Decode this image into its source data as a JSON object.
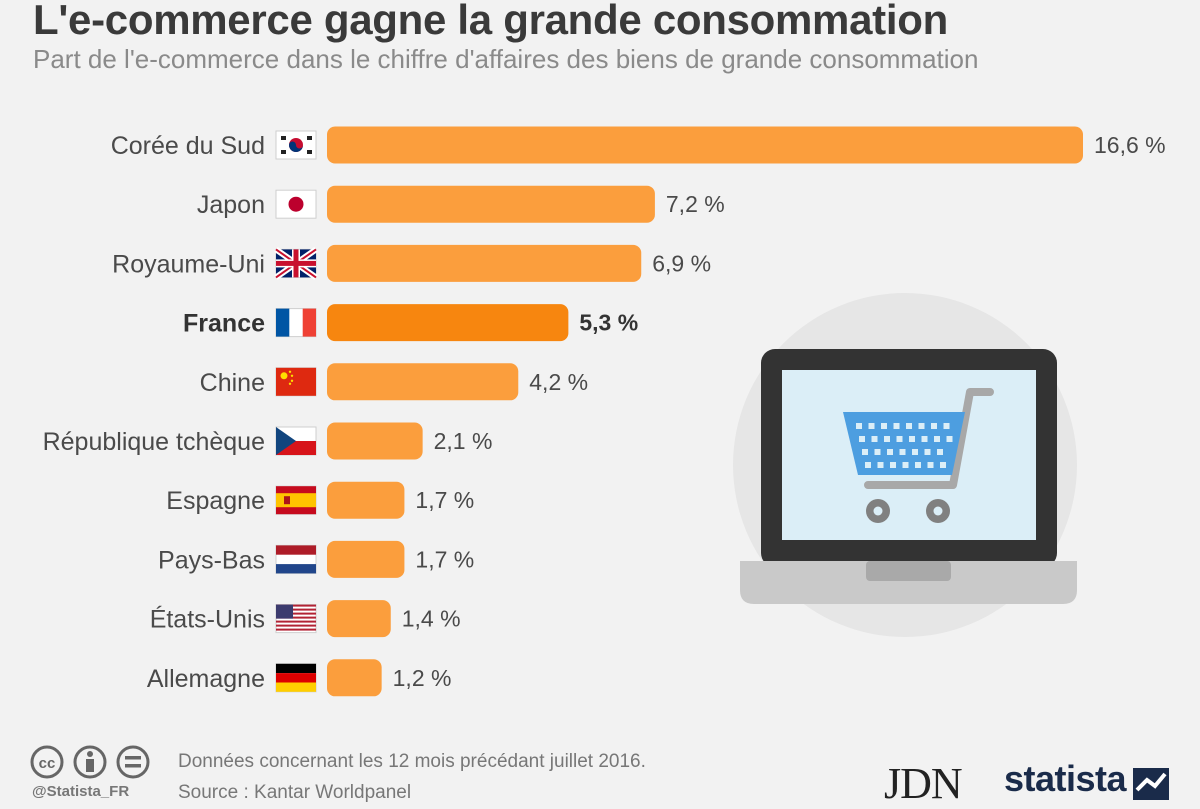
{
  "title": "L'e-commerce gagne la grande consommation",
  "subtitle": "Part de l'e-commerce dans le chiffre d'affaires des biens de grande consommation",
  "chart_data": {
    "type": "bar",
    "orientation": "horizontal",
    "categories": [
      "Corée du Sud",
      "Japon",
      "Royaume-Uni",
      "France",
      "Chine",
      "République tchèque",
      "Espagne",
      "Pays-Bas",
      "États-Unis",
      "Allemagne"
    ],
    "values": [
      16.6,
      7.2,
      6.9,
      5.3,
      4.2,
      2.1,
      1.7,
      1.7,
      1.4,
      1.2
    ],
    "value_labels": [
      "16,6 %",
      "7,2 %",
      "6,9 %",
      "5,3 %",
      "4,2 %",
      "2,1 %",
      "1,7 %",
      "1,7 %",
      "1,4 %",
      "1,2 %"
    ],
    "highlight": "France",
    "unit": "%",
    "xlim": [
      0,
      16.6
    ],
    "grid": false,
    "legend": "none",
    "colors": {
      "bar": "#fb9e3d",
      "highlight": "#f7860f"
    }
  },
  "flags": [
    "south-korea-flag-icon",
    "japan-flag-icon",
    "uk-flag-icon",
    "france-flag-icon",
    "china-flag-icon",
    "czech-flag-icon",
    "spain-flag-icon",
    "netherlands-flag-icon",
    "usa-flag-icon",
    "germany-flag-icon"
  ],
  "footer": {
    "note": "Données concernant les 12 mois précédant juillet 2016.",
    "source": "Source : Kantar Worldpanel",
    "handle": "@Statista_FR",
    "license_icons": [
      "cc-icon",
      "attribution-icon",
      "no-derivatives-icon"
    ]
  },
  "logos": {
    "jdn": "JDN",
    "statista": "statista"
  },
  "illustration": "laptop-shopping-cart-icon"
}
